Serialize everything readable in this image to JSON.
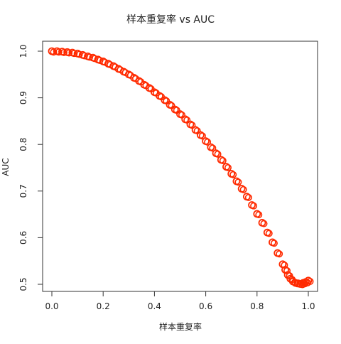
{
  "chart_data": {
    "type": "scatter",
    "title": "样本重复率 vs AUC",
    "xlabel": "样本重复率",
    "ylabel": "AUC",
    "xlim": [
      0.0,
      1.0
    ],
    "ylim": [
      0.5,
      1.0
    ],
    "x_ticks": [
      "0.0",
      "0.2",
      "0.4",
      "0.6",
      "0.8",
      "1.0"
    ],
    "y_ticks": [
      "0.5",
      "0.6",
      "0.7",
      "0.8",
      "0.9",
      "1.0"
    ],
    "grid": false,
    "legend": "none",
    "series": [
      {
        "marker": "open-circle",
        "color": "#ff2a00",
        "points": [
          [
            0.0,
            1.0
          ],
          [
            0.02,
            1.0
          ],
          [
            0.04,
            0.999
          ],
          [
            0.06,
            0.998
          ],
          [
            0.08,
            0.997
          ],
          [
            0.1,
            0.995
          ],
          [
            0.12,
            0.992
          ],
          [
            0.14,
            0.989
          ],
          [
            0.16,
            0.986
          ],
          [
            0.18,
            0.982
          ],
          [
            0.2,
            0.978
          ],
          [
            0.22,
            0.973
          ],
          [
            0.24,
            0.968
          ],
          [
            0.26,
            0.962
          ],
          [
            0.28,
            0.956
          ],
          [
            0.3,
            0.95
          ],
          [
            0.32,
            0.943
          ],
          [
            0.34,
            0.936
          ],
          [
            0.36,
            0.928
          ],
          [
            0.38,
            0.921
          ],
          [
            0.4,
            0.912
          ],
          [
            0.42,
            0.904
          ],
          [
            0.44,
            0.895
          ],
          [
            0.46,
            0.885
          ],
          [
            0.48,
            0.875
          ],
          [
            0.5,
            0.865
          ],
          [
            0.52,
            0.854
          ],
          [
            0.54,
            0.843
          ],
          [
            0.56,
            0.831
          ],
          [
            0.58,
            0.82
          ],
          [
            0.6,
            0.807
          ],
          [
            0.62,
            0.794
          ],
          [
            0.64,
            0.781
          ],
          [
            0.66,
            0.767
          ],
          [
            0.68,
            0.752
          ],
          [
            0.7,
            0.737
          ],
          [
            0.72,
            0.721
          ],
          [
            0.74,
            0.705
          ],
          [
            0.76,
            0.688
          ],
          [
            0.78,
            0.67
          ],
          [
            0.8,
            0.651
          ],
          [
            0.82,
            0.632
          ],
          [
            0.84,
            0.611
          ],
          [
            0.86,
            0.59
          ],
          [
            0.88,
            0.567
          ],
          [
            0.9,
            0.543
          ],
          [
            0.91,
            0.531
          ],
          [
            0.92,
            0.52
          ],
          [
            0.93,
            0.512
          ],
          [
            0.94,
            0.506
          ],
          [
            0.95,
            0.503
          ],
          [
            0.96,
            0.502
          ],
          [
            0.97,
            0.501
          ],
          [
            0.98,
            0.503
          ],
          [
            0.99,
            0.505
          ],
          [
            1.0,
            0.508
          ]
        ]
      }
    ]
  }
}
